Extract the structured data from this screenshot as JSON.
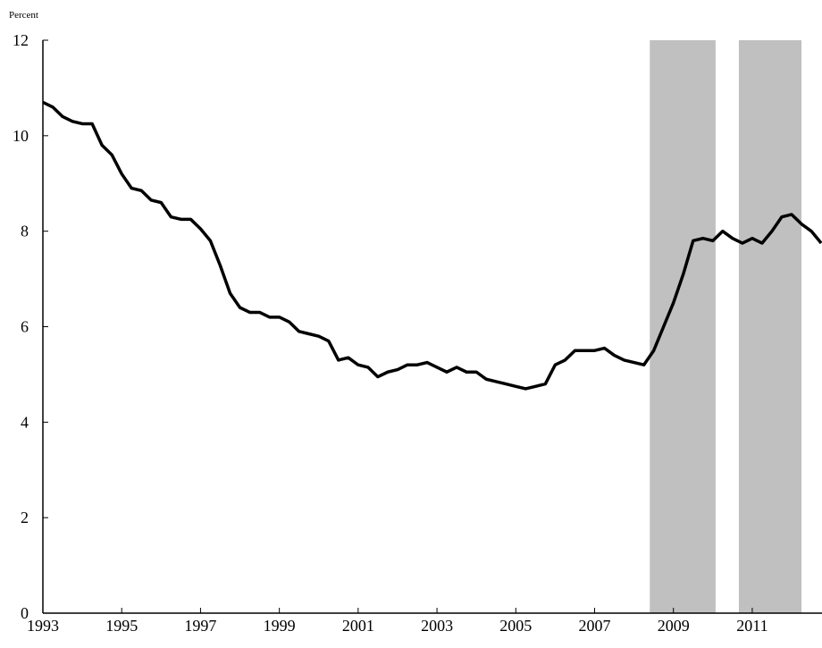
{
  "chart_data": {
    "type": "line",
    "y_label": "Percent",
    "x": [
      1993.0,
      1993.25,
      1993.5,
      1993.75,
      1994.0,
      1994.25,
      1994.5,
      1994.75,
      1995.0,
      1995.25,
      1995.5,
      1995.75,
      1996.0,
      1996.25,
      1996.5,
      1996.75,
      1997.0,
      1997.25,
      1997.5,
      1997.75,
      1998.0,
      1998.25,
      1998.5,
      1998.75,
      1999.0,
      1999.25,
      1999.5,
      1999.75,
      2000.0,
      2000.25,
      2000.5,
      2000.75,
      2001.0,
      2001.25,
      2001.5,
      2001.75,
      2002.0,
      2002.25,
      2002.5,
      2002.75,
      2003.0,
      2003.25,
      2003.5,
      2003.75,
      2004.0,
      2004.25,
      2004.5,
      2004.75,
      2005.0,
      2005.25,
      2005.5,
      2005.75,
      2006.0,
      2006.25,
      2006.5,
      2006.75,
      2007.0,
      2007.25,
      2007.5,
      2007.75,
      2008.0,
      2008.25,
      2008.5,
      2008.75,
      2009.0,
      2009.25,
      2009.5,
      2009.75,
      2010.0,
      2010.25,
      2010.5,
      2010.75,
      2011.0,
      2011.25,
      2011.5,
      2011.75,
      2012.0,
      2012.25,
      2012.5,
      2012.75
    ],
    "series": [
      {
        "name": "Percent",
        "color": "#000000",
        "values": [
          10.7,
          10.6,
          10.4,
          10.3,
          10.25,
          10.25,
          9.8,
          9.6,
          9.2,
          8.9,
          8.85,
          8.65,
          8.6,
          8.3,
          8.25,
          8.25,
          8.05,
          7.8,
          7.28,
          6.7,
          6.4,
          6.3,
          6.3,
          6.2,
          6.2,
          6.1,
          5.9,
          5.85,
          5.8,
          5.7,
          5.3,
          5.35,
          5.2,
          5.15,
          4.95,
          5.05,
          5.1,
          5.2,
          5.2,
          5.25,
          5.15,
          5.05,
          5.15,
          5.05,
          5.05,
          4.9,
          4.85,
          4.8,
          4.75,
          4.7,
          4.75,
          4.8,
          5.2,
          5.3,
          5.5,
          5.5,
          5.5,
          5.55,
          5.4,
          5.3,
          5.25,
          5.2,
          5.5,
          6.0,
          6.5,
          7.1,
          7.8,
          7.85,
          7.8,
          8.0,
          7.85,
          7.75,
          7.85,
          7.75,
          8.0,
          8.3,
          8.35,
          8.15,
          8.0,
          7.75
        ]
      }
    ],
    "shaded_regions": [
      [
        2008.4,
        2010.07
      ],
      [
        2010.66,
        2012.25
      ]
    ],
    "shade_color": "#c0c0c0",
    "xlim": [
      1993,
      2012.77
    ],
    "ylim": [
      0,
      12
    ],
    "xticks": [
      1993,
      1995,
      1997,
      1999,
      2001,
      2003,
      2005,
      2007,
      2009,
      2011
    ],
    "yticks": [
      0,
      2,
      4,
      6,
      8,
      10,
      12
    ]
  }
}
